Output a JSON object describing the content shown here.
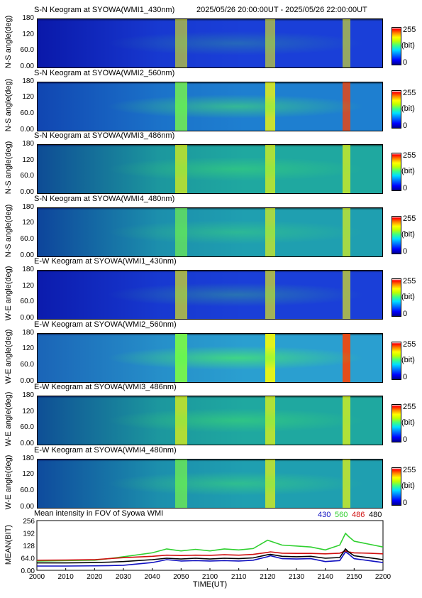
{
  "header": {
    "time_range": "2025/05/26 20:00:00UT - 2025/05/26 22:00:00UT"
  },
  "keograms": [
    {
      "title": "S-N Keogram at SYOWA(WMI1_430nm)",
      "ylabel": "N-S angle(deg)",
      "yticks": [
        "180",
        "120",
        "60.0",
        "0.00"
      ],
      "cb_max": "255",
      "cb_unit": "(bit)",
      "cb_min": "0",
      "base": "#1a3fd8",
      "brightness": 0.35
    },
    {
      "title": "S-N Keogram at SYOWA(WMI2_560nm)",
      "ylabel": "N-S angle(deg)",
      "yticks": [
        "180",
        "120",
        "60.0",
        "0.00"
      ],
      "cb_max": "255",
      "cb_unit": "(bit)",
      "cb_min": "0",
      "base": "#1e7fd0",
      "brightness": 0.75
    },
    {
      "title": "S-N Keogram at SYOWA(WMI3_486nm)",
      "ylabel": "N-S angle(deg)",
      "yticks": [
        "180",
        "120",
        "60.0",
        "0.00"
      ],
      "cb_max": "255",
      "cb_unit": "(bit)",
      "cb_min": "0",
      "base": "#1fa8a0",
      "brightness": 0.5
    },
    {
      "title": "S-N Keogram at SYOWA(WMI4_480nm)",
      "ylabel": "N-S angle(deg)",
      "yticks": [
        "180",
        "120",
        "60.0",
        "0.00"
      ],
      "cb_max": "255",
      "cb_unit": "(bit)",
      "cb_min": "0",
      "base": "#1f9fb0",
      "brightness": 0.45
    },
    {
      "title": "E-W Keogram at SYOWA(WMI1_430nm)",
      "ylabel": "W-E angle(deg)",
      "yticks": [
        "180",
        "120",
        "60.0",
        "0.00"
      ],
      "cb_max": "255",
      "cb_unit": "(bit)",
      "cb_min": "0",
      "base": "#1a3fd8",
      "brightness": 0.45
    },
    {
      "title": "E-W Keogram at SYOWA(WMI2_560nm)",
      "ylabel": "W-E angle(deg)",
      "yticks": [
        "180",
        "120",
        "60.0",
        "0.00"
      ],
      "cb_max": "255",
      "cb_unit": "(bit)",
      "cb_min": "0",
      "base": "#2a9fd0",
      "brightness": 0.95
    },
    {
      "title": "E-W Keogram at SYOWA(WMI3_486nm)",
      "ylabel": "W-E angle(deg)",
      "yticks": [
        "180",
        "120",
        "60.0",
        "0.00"
      ],
      "cb_max": "255",
      "cb_unit": "(bit)",
      "cb_min": "0",
      "base": "#1fa8a0",
      "brightness": 0.55
    },
    {
      "title": "E-W Keogram at SYOWA(WMI4_480nm)",
      "ylabel": "W-E angle(deg)",
      "yticks": [
        "180",
        "120",
        "60.0",
        "0.00"
      ],
      "cb_max": "255",
      "cb_unit": "(bit)",
      "cb_min": "0",
      "base": "#1f9fb0",
      "brightness": 0.55
    }
  ],
  "mean_panel": {
    "title": "Mean intensity in FOV of Syowa WMI",
    "ylabel": "MEAN(BIT)",
    "xlabel": "TIME(UT)",
    "legend": [
      {
        "label": "430",
        "color": "#1010c0"
      },
      {
        "label": "560",
        "color": "#30d030"
      },
      {
        "label": "486",
        "color": "#d01010"
      },
      {
        "label": "480",
        "color": "#000000"
      }
    ]
  },
  "chart_data": {
    "type": "line",
    "title": "Mean intensity in FOV of Syowa WMI",
    "xlabel": "TIME(UT)",
    "ylabel": "MEAN(BIT)",
    "x": [
      2000,
      2010,
      2020,
      2025,
      2030,
      2040,
      2045,
      2050,
      2055,
      2100,
      2105,
      2110,
      2115,
      2120,
      2121,
      2125,
      2130,
      2135,
      2140,
      2145,
      2147,
      2148,
      2150,
      2155,
      2200
    ],
    "xticks": [
      "2000",
      "2010",
      "2020",
      "2030",
      "2040",
      "2050",
      "2100",
      "2110",
      "2120",
      "2130",
      "2140",
      "2150",
      "2200"
    ],
    "ylim": [
      0,
      256
    ],
    "yticks": [
      "256",
      "192",
      "128",
      "64.0",
      "0.00"
    ],
    "ytick_values": [
      256,
      192,
      128,
      64,
      0
    ],
    "series": [
      {
        "name": "430",
        "color": "#1010c0",
        "values": [
          22,
          22,
          23,
          24,
          26,
          40,
          55,
          48,
          50,
          48,
          50,
          48,
          52,
          70,
          75,
          60,
          58,
          60,
          45,
          50,
          95,
          85,
          60,
          50,
          40
        ]
      },
      {
        "name": "560",
        "color": "#30d030",
        "values": [
          48,
          50,
          52,
          60,
          70,
          90,
          110,
          100,
          108,
          100,
          110,
          105,
          112,
          155,
          150,
          130,
          125,
          120,
          105,
          130,
          190,
          175,
          150,
          135,
          120
        ]
      },
      {
        "name": "486",
        "color": "#d01010",
        "values": [
          52,
          53,
          55,
          60,
          65,
          72,
          78,
          76,
          78,
          77,
          80,
          78,
          82,
          92,
          95,
          88,
          87,
          87,
          85,
          88,
          100,
          95,
          90,
          88,
          85
        ]
      },
      {
        "name": "480",
        "color": "#000000",
        "values": [
          38,
          38,
          40,
          42,
          45,
          55,
          62,
          58,
          62,
          58,
          62,
          60,
          64,
          80,
          82,
          72,
          70,
          72,
          62,
          66,
          110,
          95,
          75,
          65,
          55
        ]
      }
    ]
  }
}
